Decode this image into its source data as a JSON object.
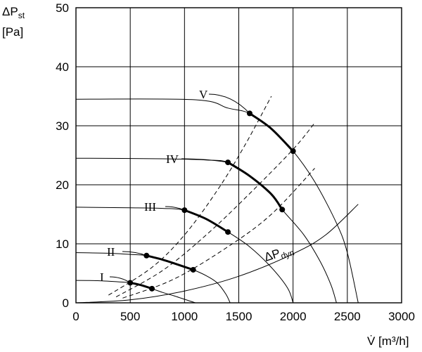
{
  "chart_data": {
    "type": "line",
    "title": "",
    "xlabel": "V̇ [m³/h]",
    "ylabel_line1": "ΔPst",
    "ylabel_line2": "[Pa]",
    "ylabel_main": "ΔP",
    "ylabel_sub": "st",
    "xlim": [
      0,
      3000
    ],
    "ylim": [
      0,
      50
    ],
    "x_ticks": [
      "0",
      "500",
      "1000",
      "1500",
      "2000",
      "2500",
      "3000"
    ],
    "y_ticks": [
      "0",
      "10",
      "20",
      "30",
      "40",
      "50"
    ],
    "grid": true,
    "series": [
      {
        "name": "I",
        "points": [
          [
            0,
            3.8
          ],
          [
            200,
            3.75
          ],
          [
            400,
            3.55
          ],
          [
            500,
            3.4
          ],
          [
            600,
            3.0
          ],
          [
            700,
            2.4
          ],
          [
            800,
            1.75
          ],
          [
            900,
            1.2
          ],
          [
            1000,
            0.6
          ],
          [
            1100,
            0.0
          ]
        ],
        "operating_range": [
          [
            500,
            3.4
          ],
          [
            700,
            2.4
          ]
        ]
      },
      {
        "name": "II",
        "points": [
          [
            0,
            8.5
          ],
          [
            300,
            8.4
          ],
          [
            500,
            8.2
          ],
          [
            650,
            8.0
          ],
          [
            800,
            7.3
          ],
          [
            950,
            6.4
          ],
          [
            1080,
            5.6
          ],
          [
            1200,
            4.6
          ],
          [
            1300,
            3.4
          ],
          [
            1380,
            1.5
          ],
          [
            1420,
            0.0
          ]
        ],
        "operating_range": [
          [
            650,
            8.0
          ],
          [
            1080,
            5.6
          ]
        ]
      },
      {
        "name": "III",
        "points": [
          [
            0,
            16.2
          ],
          [
            500,
            16.1
          ],
          [
            800,
            16.0
          ],
          [
            1000,
            15.7
          ],
          [
            1200,
            14.2
          ],
          [
            1400,
            12.0
          ],
          [
            1600,
            9.5
          ],
          [
            1800,
            6.0
          ],
          [
            1950,
            2.5
          ],
          [
            2000,
            0.0
          ]
        ],
        "operating_range": [
          [
            1000,
            15.7
          ],
          [
            1400,
            12.0
          ]
        ]
      },
      {
        "name": "IV",
        "points": [
          [
            0,
            24.5
          ],
          [
            800,
            24.4
          ],
          [
            1200,
            24.2
          ],
          [
            1400,
            23.8
          ],
          [
            1600,
            21.5
          ],
          [
            1800,
            18.4
          ],
          [
            1900,
            15.8
          ],
          [
            2100,
            11.5
          ],
          [
            2250,
            7.0
          ],
          [
            2350,
            3.0
          ],
          [
            2400,
            0.0
          ]
        ],
        "operating_range": [
          [
            1400,
            23.8
          ],
          [
            1900,
            15.8
          ]
        ]
      },
      {
        "name": "V",
        "points": [
          [
            0,
            34.5
          ],
          [
            1100,
            34.4
          ],
          [
            1400,
            33.0
          ],
          [
            1600,
            32.1
          ],
          [
            1800,
            29.5
          ],
          [
            2000,
            25.7
          ],
          [
            2200,
            20.5
          ],
          [
            2400,
            13.5
          ],
          [
            2500,
            8.5
          ],
          [
            2600,
            0.0
          ]
        ],
        "operating_range": [
          [
            1600,
            32.1
          ],
          [
            2000,
            25.7
          ]
        ]
      },
      {
        "name": "ΔPdyn",
        "label_main": "ΔP",
        "label_sub": "dyn",
        "points": [
          [
            0,
            0.0
          ],
          [
            500,
            0.5
          ],
          [
            1000,
            2.0
          ],
          [
            1500,
            4.5
          ],
          [
            2000,
            8.3
          ],
          [
            2300,
            11.5
          ],
          [
            2600,
            16.7
          ]
        ]
      }
    ],
    "system_curves": [
      {
        "points": [
          [
            300,
            1.3
          ],
          [
            700,
            6.0
          ],
          [
            1000,
            11.5
          ],
          [
            1300,
            19.0
          ],
          [
            1550,
            26.5
          ],
          [
            1800,
            35.0
          ]
        ]
      },
      {
        "points": [
          [
            370,
            1.0
          ],
          [
            800,
            5.5
          ],
          [
            1200,
            11.5
          ],
          [
            1600,
            18.5
          ],
          [
            2000,
            26.0
          ],
          [
            2200,
            30.5
          ]
        ]
      },
      {
        "points": [
          [
            430,
            0.8
          ],
          [
            900,
            4.0
          ],
          [
            1400,
            9.5
          ],
          [
            1800,
            15.0
          ],
          [
            2200,
            22.8
          ]
        ]
      }
    ]
  }
}
